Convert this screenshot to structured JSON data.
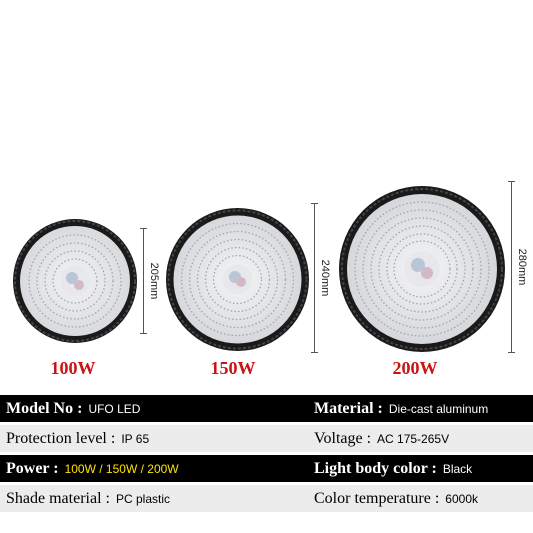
{
  "products": [
    {
      "watt": "100W",
      "dimension": "205mm"
    },
    {
      "watt": "150W",
      "dimension": "240mm"
    },
    {
      "watt": "200W",
      "dimension": "280mm"
    }
  ],
  "specs": [
    {
      "left": {
        "label": "Model No :",
        "value": "UFO LED"
      },
      "right": {
        "label": "Material :",
        "value": "Die-cast aluminum"
      }
    },
    {
      "left": {
        "label": "Protection level :",
        "value": "IP 65"
      },
      "right": {
        "label": "Voltage :",
        "value": "AC 175-265V"
      }
    },
    {
      "left": {
        "label": "Power :",
        "value": "100W / 150W / 200W"
      },
      "right": {
        "label": "Light body color :",
        "value": "Black"
      }
    },
    {
      "left": {
        "label": "Shade material :",
        "value": "PC plastic"
      },
      "right": {
        "label": "Color temperature :",
        "value": "6000k"
      }
    }
  ],
  "colors": {
    "accent_red": "#c81414",
    "highlight_yellow": "#ffe000",
    "row_dark": "#000000",
    "row_light": "#ececec"
  }
}
